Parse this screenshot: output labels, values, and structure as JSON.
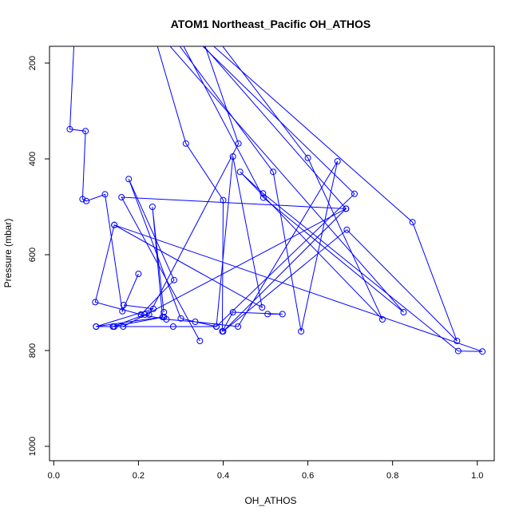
{
  "chart_data": {
    "type": "line",
    "title": "ATOM1 Northeast_Pacific OH_ATHOS",
    "xlabel": "OH_ATHOS",
    "ylabel": "Pressure (mbar)",
    "xlim": [
      -0.01,
      1.04
    ],
    "ylim": [
      1030,
      165
    ],
    "y_reversed": true,
    "x_ticks": [
      "0.0",
      "0.2",
      "0.4",
      "0.6",
      "0.8",
      "1.0"
    ],
    "x_tick_values": [
      0,
      0.2,
      0.4,
      0.6,
      0.8,
      1.0
    ],
    "y_ticks": [
      "200",
      "400",
      "600",
      "800",
      "1000"
    ],
    "y_tick_values": [
      200,
      400,
      600,
      800,
      1000
    ],
    "line_color": "#0000ff",
    "marker": "open-circle",
    "series": [
      {
        "points": [
          [
            0.05,
            120
          ],
          [
            0.038,
            338
          ],
          [
            0.075,
            342
          ],
          [
            0.068,
            484
          ],
          [
            0.077,
            488
          ],
          [
            0.121,
            474
          ],
          [
            0.162,
            718
          ],
          [
            0.2,
            640
          ]
        ]
      },
      {
        "points": [
          [
            0.23,
            120
          ],
          [
            0.312,
            368
          ],
          [
            0.4,
            486
          ],
          [
            0.398,
            760
          ],
          [
            0.423,
            720
          ],
          [
            0.54,
            724
          ],
          [
            0.505,
            724
          ]
        ]
      },
      {
        "points": [
          [
            0.26,
            120
          ],
          [
            0.518,
            427
          ],
          [
            0.584,
            760
          ],
          [
            0.67,
            405
          ],
          [
            0.435,
            750
          ],
          [
            0.334,
            740
          ],
          [
            0.266,
            735
          ],
          [
            0.206,
            725
          ],
          [
            0.098,
            699
          ],
          [
            0.143,
            538
          ],
          [
            0.492,
            710
          ],
          [
            0.423,
            395
          ],
          [
            0.384,
            750
          ],
          [
            0.3,
            733
          ],
          [
            0.177,
            442
          ],
          [
            0.284,
            653
          ],
          [
            0.206,
            725
          ]
        ]
      },
      {
        "points": [
          [
            0.28,
            120
          ],
          [
            0.495,
            481
          ],
          [
            0.826,
            720
          ],
          [
            0.23,
            120
          ]
        ]
      },
      {
        "points": [
          [
            0.3,
            120
          ],
          [
            0.71,
            473
          ],
          [
            0.384,
            750
          ],
          [
            0.282,
            750
          ],
          [
            0.1,
            750
          ],
          [
            0.235,
            713
          ],
          [
            0.165,
            705
          ]
        ]
      },
      {
        "points": [
          [
            0.31,
            120
          ],
          [
            0.69,
            504
          ],
          [
            0.164,
            750
          ],
          [
            0.143,
            750
          ],
          [
            0.1,
            750
          ],
          [
            0.257,
            730
          ],
          [
            0.233,
            500
          ],
          [
            0.26,
            720
          ]
        ]
      },
      {
        "points": [
          [
            0.32,
            120
          ],
          [
            0.847,
            532
          ],
          [
            0.952,
            780
          ],
          [
            0.692,
            548
          ],
          [
            0.4,
            760
          ],
          [
            0.69,
            504
          ],
          [
            0.16,
            480
          ],
          [
            0.345,
            780
          ]
        ]
      },
      {
        "points": [
          [
            0.34,
            120
          ],
          [
            0.436,
            368
          ],
          [
            0.225,
            725
          ],
          [
            0.215,
            725
          ],
          [
            0.14,
            750
          ],
          [
            0.14,
            750
          ],
          [
            0.26,
            730
          ]
        ]
      },
      {
        "points": [
          [
            0.36,
            120
          ],
          [
            0.6,
            398
          ],
          [
            0.776,
            735
          ],
          [
            0.44,
            427
          ],
          [
            0.494,
            472
          ],
          [
            0.955,
            801
          ],
          [
            1.012,
            802
          ],
          [
            0.143,
            538
          ]
        ]
      }
    ]
  }
}
